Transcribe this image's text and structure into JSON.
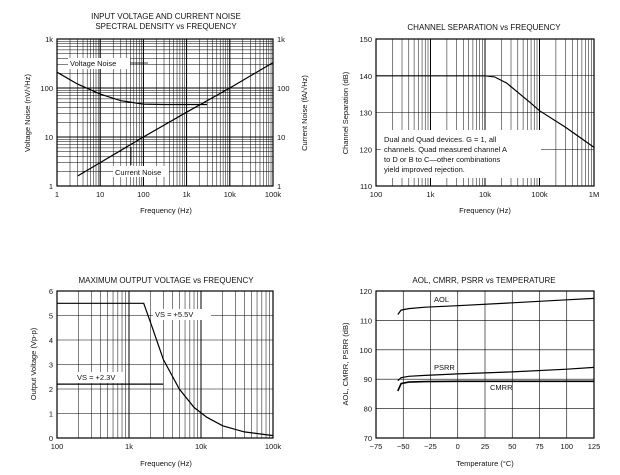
{
  "chart_data": [
    {
      "id": "noise",
      "type": "line",
      "title": "INPUT VOLTAGE AND CURRENT NOISE",
      "subtitle": "SPECTRAL DENSITY vs FREQUENCY",
      "xlabel": "Frequency (Hz)",
      "ylabel": "Voltage Noise (nV/√Hz)",
      "y2label": "Current Noise (fA/√Hz)",
      "xscale": "log",
      "yscale": "log",
      "xlim": [
        1,
        100000
      ],
      "ylim": [
        1,
        1000
      ],
      "xticks": [
        1,
        10,
        100,
        1000,
        10000,
        100000
      ],
      "xticklabels": [
        "1",
        "10",
        "100",
        "1k",
        "10k",
        "100k"
      ],
      "yticks": [
        1,
        10,
        100,
        1000
      ],
      "yticklabels": [
        "1",
        "10",
        "100",
        "1k"
      ],
      "y2ticklabels": [
        "1",
        "10",
        "100",
        "1k"
      ],
      "series": [
        {
          "name": "Voltage Noise",
          "x": [
            1,
            3,
            10,
            30,
            100,
            300,
            1000,
            3000
          ],
          "y": [
            210,
            120,
            75,
            55,
            47,
            46,
            46,
            46
          ]
        },
        {
          "name": "Current Noise",
          "x": [
            3,
            10,
            100,
            1000,
            10000,
            100000
          ],
          "y": [
            1.6,
            3.0,
            10,
            32,
            100,
            330
          ]
        }
      ],
      "annotations": [
        "Voltage Noise",
        "Current Noise"
      ]
    },
    {
      "id": "separation",
      "type": "line",
      "title": "CHANNEL SEPARATION vs FREQUENCY",
      "xlabel": "Frequency (Hz)",
      "ylabel": "Channel Separation (dB)",
      "xscale": "log",
      "yscale": "linear",
      "xlim": [
        100,
        1000000
      ],
      "ylim": [
        110,
        150
      ],
      "xticks": [
        100,
        1000,
        10000,
        100000,
        1000000
      ],
      "xticklabels": [
        "100",
        "1k",
        "10k",
        "100k",
        "1M"
      ],
      "yticks": [
        110,
        120,
        130,
        140,
        150
      ],
      "yticklabels": [
        "110",
        "120",
        "130",
        "140",
        "150"
      ],
      "series": [
        {
          "name": "Channel Separation",
          "x": [
            100,
            1000,
            10000,
            15000,
            25000,
            40000,
            70000,
            100000,
            300000,
            1000000
          ],
          "y": [
            140,
            140,
            140,
            139.7,
            138,
            135.5,
            132.5,
            130.5,
            126,
            120.5
          ]
        }
      ],
      "note": [
        "Dual and Quad devices. G = 1, all",
        "channels. Quad measured channel A",
        "to D or B to C—other combinations",
        "yield improved rejection."
      ]
    },
    {
      "id": "outvolt",
      "type": "line",
      "title": "MAXIMUM OUTPUT VOLTAGE vs FREQUENCY",
      "xlabel": "Frequency (Hz)",
      "ylabel": "Output Voltage (Vp-p)",
      "xscale": "log",
      "yscale": "linear",
      "xlim": [
        100,
        100000
      ],
      "ylim": [
        0,
        6
      ],
      "xticks": [
        100,
        1000,
        10000,
        100000
      ],
      "xticklabels": [
        "100",
        "1k",
        "10k",
        "100k"
      ],
      "yticks": [
        0,
        1,
        2,
        3,
        4,
        5,
        6
      ],
      "yticklabels": [
        "0",
        "1",
        "2",
        "3",
        "4",
        "5",
        "6"
      ],
      "series": [
        {
          "name": "VS = +5.5V",
          "x": [
            100,
            1000,
            1600,
            2000,
            3000,
            5000,
            8000,
            12000,
            20000,
            40000,
            100000
          ],
          "y": [
            5.5,
            5.5,
            5.5,
            4.7,
            3.2,
            2.0,
            1.25,
            0.85,
            0.5,
            0.25,
            0.1
          ]
        },
        {
          "name": "VS = +2.3V",
          "x": [
            100,
            1000,
            2500,
            3000
          ],
          "y": [
            2.2,
            2.2,
            2.2,
            2.2
          ]
        }
      ],
      "label_vs55": "VS = +5.5V",
      "label_vs23": "VS = +2.3V"
    },
    {
      "id": "temp",
      "type": "line",
      "title": "AOL, CMRR, PSRR vs TEMPERATURE",
      "xlabel": "Temperature (°C)",
      "ylabel": "AOL, CMRR, PSRR (dB)",
      "xscale": "linear",
      "yscale": "linear",
      "xlim": [
        -75,
        125
      ],
      "ylim": [
        70,
        120
      ],
      "xticks": [
        -75,
        -50,
        -25,
        0,
        25,
        50,
        75,
        100,
        125
      ],
      "xticklabels": [
        "−75",
        "−50",
        "−25",
        "0",
        "25",
        "50",
        "75",
        "100",
        "125"
      ],
      "yticks": [
        70,
        80,
        90,
        100,
        110,
        120
      ],
      "yticklabels": [
        "70",
        "80",
        "90",
        "100",
        "110",
        "120"
      ],
      "series": [
        {
          "name": "AOL",
          "x": [
            -55,
            -52,
            -45,
            -30,
            0,
            50,
            100,
            125
          ],
          "y": [
            112,
            113.5,
            114,
            114.5,
            115,
            116,
            117,
            117.5
          ]
        },
        {
          "name": "PSRR",
          "x": [
            -55,
            -52,
            -45,
            -30,
            0,
            50,
            100,
            125
          ],
          "y": [
            89.5,
            90.5,
            91,
            91.3,
            91.8,
            92.5,
            93.4,
            94
          ]
        },
        {
          "name": "CMRR",
          "x": [
            -55,
            -52,
            -45,
            -30,
            0,
            50,
            100,
            125
          ],
          "y": [
            86,
            88.5,
            89,
            89.2,
            89.3,
            89.3,
            89.3,
            89.3
          ]
        }
      ],
      "labels": [
        "AOL",
        "PSRR",
        "CMRR"
      ]
    }
  ]
}
